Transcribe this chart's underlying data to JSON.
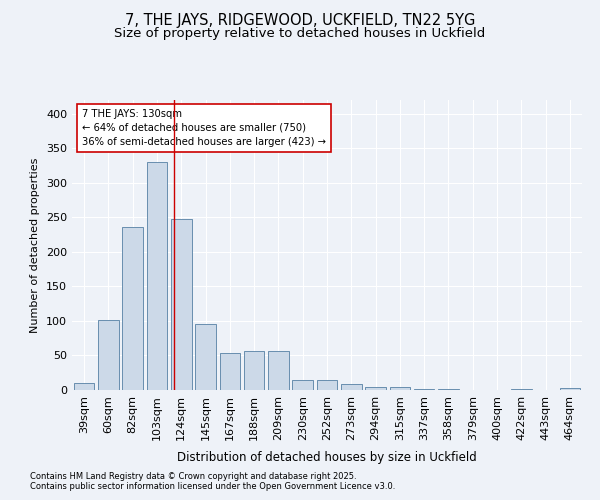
{
  "title1": "7, THE JAYS, RIDGEWOOD, UCKFIELD, TN22 5YG",
  "title2": "Size of property relative to detached houses in Uckfield",
  "xlabel": "Distribution of detached houses by size in Uckfield",
  "ylabel": "Number of detached properties",
  "bar_labels": [
    "39sqm",
    "60sqm",
    "82sqm",
    "103sqm",
    "124sqm",
    "145sqm",
    "167sqm",
    "188sqm",
    "209sqm",
    "230sqm",
    "252sqm",
    "273sqm",
    "294sqm",
    "315sqm",
    "337sqm",
    "358sqm",
    "379sqm",
    "400sqm",
    "422sqm",
    "443sqm",
    "464sqm"
  ],
  "bar_values": [
    10,
    102,
    236,
    330,
    248,
    96,
    54,
    56,
    57,
    15,
    15,
    8,
    4,
    4,
    2,
    1,
    0,
    0,
    2,
    0,
    3
  ],
  "bar_color": "#ccd9e8",
  "bar_edge_color": "#5580a4",
  "annotation_text": "7 THE JAYS: 130sqm\n← 64% of detached houses are smaller (750)\n36% of semi-detached houses are larger (423) →",
  "vline_x": 3.7,
  "annotation_box_color": "#ffffff",
  "annotation_box_edge": "#cc0000",
  "vline_color": "#cc0000",
  "footer1": "Contains HM Land Registry data © Crown copyright and database right 2025.",
  "footer2": "Contains public sector information licensed under the Open Government Licence v3.0.",
  "bg_color": "#eef2f8",
  "grid_color": "#ffffff",
  "title_fontsize": 10.5,
  "subtitle_fontsize": 9.5
}
